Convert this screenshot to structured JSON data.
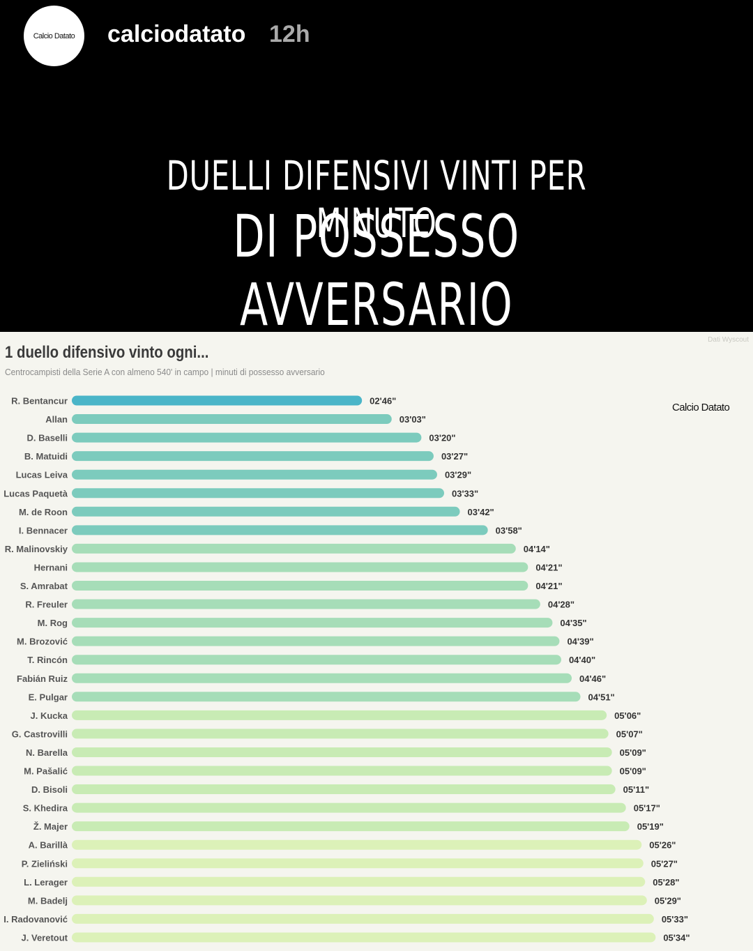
{
  "post": {
    "avatar_text": "Calcio Datato",
    "username": "calciodatato",
    "time": "12h"
  },
  "headline": {
    "line1": "DUELLI DIFENSIVI VINTI PER MINUTO",
    "line2": "DI POSSESSO AVVERSARIO"
  },
  "chart_data": {
    "type": "bar",
    "orientation": "horizontal",
    "title": "1 duello difensivo vinto ogni...",
    "subtitle": "Centrocampisti della Serie A con almeno 540' in campo | minuti di possesso avversario",
    "source": "Dati Wyscout",
    "brand": "Calcio Datato",
    "grid": false,
    "categories": [
      "R. Bentancur",
      "Allan",
      "D. Baselli",
      "B. Matuidi",
      "Lucas Leiva",
      "Lucas Paquetà",
      "M. de Roon",
      "I. Bennacer",
      "R. Malinovskiy",
      "Hernani",
      "S. Amrabat",
      "R. Freuler",
      "M. Rog",
      "M. Brozović",
      "T. Rincón",
      "Fabián Ruiz",
      "E. Pulgar",
      "J. Kucka",
      "G. Castrovilli",
      "N. Barella",
      "M. Pašalić",
      "D. Bisoli",
      "S. Khedira",
      "Ž. Majer",
      "A. Barillà",
      "P. Zieliński",
      "L. Lerager",
      "M. Badelj",
      "I. Radovanović",
      "J. Veretout"
    ],
    "values": [
      166,
      183,
      200,
      207,
      209,
      213,
      222,
      238,
      254,
      261,
      261,
      268,
      275,
      279,
      280,
      286,
      291,
      306,
      307,
      309,
      309,
      311,
      317,
      319,
      326,
      327,
      328,
      329,
      333,
      334
    ],
    "unit": "seconds",
    "labels": [
      "02'46\"",
      "03'03\"",
      "03'20\"",
      "03'27\"",
      "03'29\"",
      "03'33\"",
      "03'42\"",
      "03'58\"",
      "04'14\"",
      "04'21\"",
      "04'21\"",
      "04'28\"",
      "04'35\"",
      "04'39\"",
      "04'40\"",
      "04'46\"",
      "04'51\"",
      "05'06\"",
      "05'07\"",
      "05'09\"",
      "05'09\"",
      "05'11\"",
      "05'17\"",
      "05'19\"",
      "05'26\"",
      "05'27\"",
      "05'28\"",
      "05'29\"",
      "05'33\"",
      "05'34\""
    ],
    "colors": {
      "top": "#4ab5c8",
      "group2": "#7ccbbd",
      "group3": "#a6ddb8",
      "group4": "#c8ebb4",
      "group5": "#dcf1b8"
    }
  }
}
